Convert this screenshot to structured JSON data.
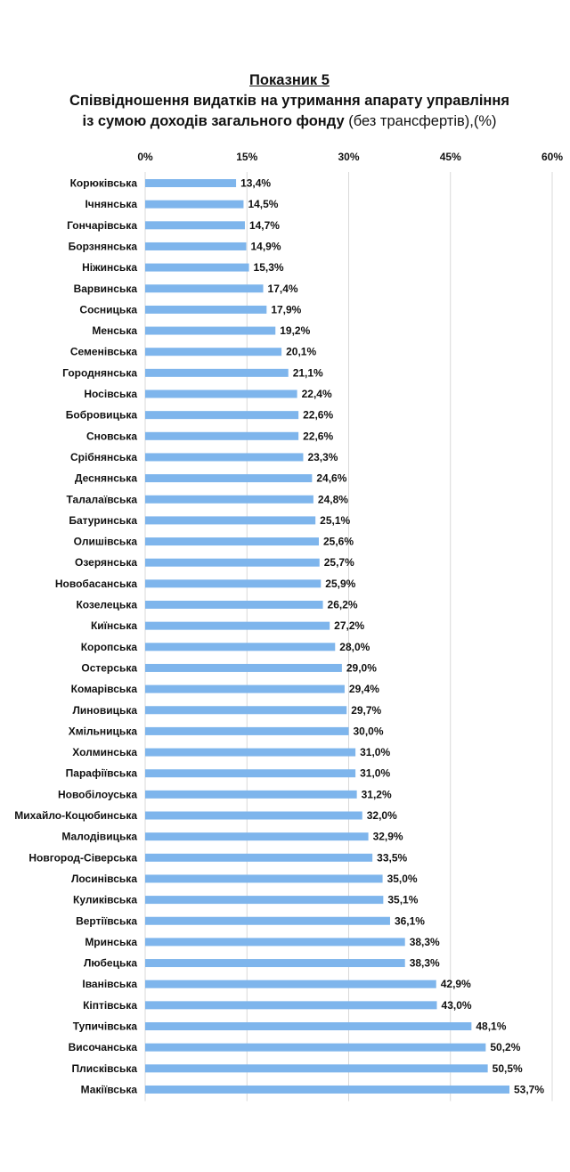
{
  "chart_data": {
    "type": "bar",
    "orientation": "horizontal",
    "title": "Показник 5",
    "subtitle_bold": "Співвідношення видатків на утримання апарату управління",
    "subtitle_bold_2": "із сумою доходів загального фонду",
    "subtitle_light": " (без трансфертів),(%)",
    "xlim": [
      0,
      60
    ],
    "ticks": [
      0,
      15,
      30,
      45,
      60
    ],
    "tick_labels": [
      "0%",
      "15%",
      "30%",
      "45%",
      "60%"
    ],
    "grid": true,
    "bar_color": "#7EB5EC",
    "categories": [
      "Корюківська",
      "Ічнянська",
      "Гончарівська",
      "Борзнянська",
      "Ніжинська",
      "Варвинська",
      "Сосницька",
      "Менська",
      "Семенівська",
      "Городнянська",
      "Носівська",
      "Бобровицька",
      "Сновська",
      "Срібнянська",
      "Деснянська",
      "Талалаївська",
      "Батуринська",
      "Олишівська",
      "Озерянська",
      "Новобасанська",
      "Козелецька",
      "Киїнська",
      "Коропська",
      "Остерська",
      "Комарівська",
      "Линовицька",
      "Хмільницька",
      "Холминська",
      "Парафіївська",
      "Новобілоуська",
      "Михайло-Коцюбинська",
      "Малодівицька",
      "Новгород-Сіверська",
      "Лосинівська",
      "Куликівська",
      "Вертіївська",
      "Мринська",
      "Любецька",
      "Іванівська",
      "Кіптівська",
      "Тупичівська",
      "Височанська",
      "Плисківська",
      "Макіївська"
    ],
    "values": [
      13.4,
      14.5,
      14.7,
      14.9,
      15.3,
      17.4,
      17.9,
      19.2,
      20.1,
      21.1,
      22.4,
      22.6,
      22.6,
      23.3,
      24.6,
      24.8,
      25.1,
      25.6,
      25.7,
      25.9,
      26.2,
      27.2,
      28.0,
      29.0,
      29.4,
      29.7,
      30.0,
      31.0,
      31.0,
      31.2,
      32.0,
      32.9,
      33.5,
      35.0,
      35.1,
      36.1,
      38.3,
      38.3,
      42.9,
      43.0,
      48.1,
      50.2,
      50.5,
      53.7
    ],
    "value_labels": [
      "13,4%",
      "14,5%",
      "14,7%",
      "14,9%",
      "15,3%",
      "17,4%",
      "17,9%",
      "19,2%",
      "20,1%",
      "21,1%",
      "22,4%",
      "22,6%",
      "22,6%",
      "23,3%",
      "24,6%",
      "24,8%",
      "25,1%",
      "25,6%",
      "25,7%",
      "25,9%",
      "26,2%",
      "27,2%",
      "28,0%",
      "29,0%",
      "29,4%",
      "29,7%",
      "30,0%",
      "31,0%",
      "31,0%",
      "31,2%",
      "32,0%",
      "32,9%",
      "33,5%",
      "35,0%",
      "35,1%",
      "36,1%",
      "38,3%",
      "38,3%",
      "42,9%",
      "43,0%",
      "48,1%",
      "50,2%",
      "50,5%",
      "53,7%"
    ]
  }
}
